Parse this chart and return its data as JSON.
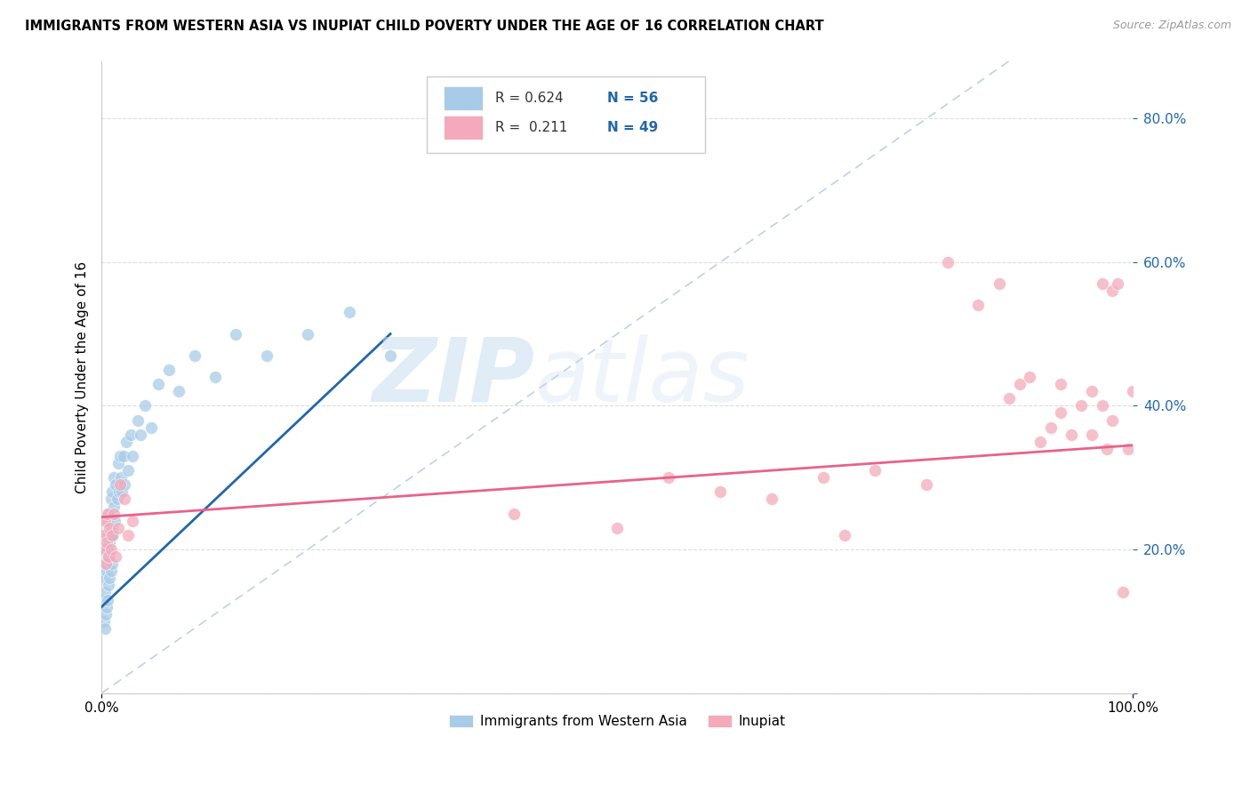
{
  "title": "IMMIGRANTS FROM WESTERN ASIA VS INUPIAT CHILD POVERTY UNDER THE AGE OF 16 CORRELATION CHART",
  "source": "Source: ZipAtlas.com",
  "ylabel": "Child Poverty Under the Age of 16",
  "legend_label1": "Immigrants from Western Asia",
  "legend_label2": "Inupiat",
  "legend_r1": "R = 0.624",
  "legend_n1": "N = 56",
  "legend_r2": "R =  0.211",
  "legend_n2": "N = 49",
  "color_blue": "#a8cce8",
  "color_pink": "#f4aabc",
  "color_blue_line": "#2166ac",
  "color_pink_line": "#e8628a",
  "watermark_zip": "ZIP",
  "watermark_atlas": "atlas",
  "diag_line_color": "#c0d0e8",
  "background_color": "#ffffff",
  "grid_color": "#dddddd",
  "blue_scatter_x": [
    0.001,
    0.002,
    0.002,
    0.003,
    0.003,
    0.003,
    0.004,
    0.004,
    0.005,
    0.005,
    0.005,
    0.006,
    0.006,
    0.006,
    0.007,
    0.007,
    0.007,
    0.008,
    0.008,
    0.009,
    0.009,
    0.009,
    0.01,
    0.01,
    0.01,
    0.011,
    0.012,
    0.012,
    0.013,
    0.014,
    0.015,
    0.016,
    0.017,
    0.018,
    0.019,
    0.02,
    0.021,
    0.022,
    0.024,
    0.026,
    0.028,
    0.03,
    0.035,
    0.038,
    0.042,
    0.048,
    0.055,
    0.065,
    0.075,
    0.09,
    0.11,
    0.13,
    0.16,
    0.2,
    0.24,
    0.28
  ],
  "blue_scatter_y": [
    0.13,
    0.1,
    0.16,
    0.09,
    0.14,
    0.2,
    0.11,
    0.18,
    0.12,
    0.17,
    0.22,
    0.13,
    0.19,
    0.24,
    0.15,
    0.2,
    0.25,
    0.16,
    0.21,
    0.17,
    0.22,
    0.27,
    0.18,
    0.23,
    0.28,
    0.22,
    0.26,
    0.3,
    0.24,
    0.29,
    0.27,
    0.32,
    0.28,
    0.33,
    0.3,
    0.28,
    0.33,
    0.29,
    0.35,
    0.31,
    0.36,
    0.33,
    0.38,
    0.36,
    0.4,
    0.37,
    0.43,
    0.45,
    0.42,
    0.47,
    0.44,
    0.5,
    0.47,
    0.5,
    0.53,
    0.47
  ],
  "pink_scatter_x": [
    0.001,
    0.002,
    0.003,
    0.004,
    0.005,
    0.006,
    0.007,
    0.008,
    0.009,
    0.01,
    0.012,
    0.014,
    0.016,
    0.018,
    0.022,
    0.026,
    0.03,
    0.4,
    0.5,
    0.55,
    0.6,
    0.65,
    0.7,
    0.72,
    0.75,
    0.8,
    0.82,
    0.85,
    0.87,
    0.88,
    0.89,
    0.9,
    0.91,
    0.92,
    0.93,
    0.93,
    0.94,
    0.95,
    0.96,
    0.96,
    0.97,
    0.97,
    0.975,
    0.98,
    0.98,
    0.985,
    0.99,
    0.995,
    1.0
  ],
  "pink_scatter_y": [
    0.22,
    0.2,
    0.24,
    0.18,
    0.21,
    0.25,
    0.19,
    0.23,
    0.2,
    0.22,
    0.25,
    0.19,
    0.23,
    0.29,
    0.27,
    0.22,
    0.24,
    0.25,
    0.23,
    0.3,
    0.28,
    0.27,
    0.3,
    0.22,
    0.31,
    0.29,
    0.6,
    0.54,
    0.57,
    0.41,
    0.43,
    0.44,
    0.35,
    0.37,
    0.39,
    0.43,
    0.36,
    0.4,
    0.36,
    0.42,
    0.4,
    0.57,
    0.34,
    0.38,
    0.56,
    0.57,
    0.14,
    0.34,
    0.42
  ],
  "xlim": [
    0,
    1.0
  ],
  "ylim": [
    0,
    0.88
  ],
  "ytick_vals": [
    0.0,
    0.2,
    0.4,
    0.6,
    0.8
  ],
  "ytick_labels": [
    "",
    "20.0%",
    "40.0%",
    "60.0%",
    "80.0%"
  ]
}
